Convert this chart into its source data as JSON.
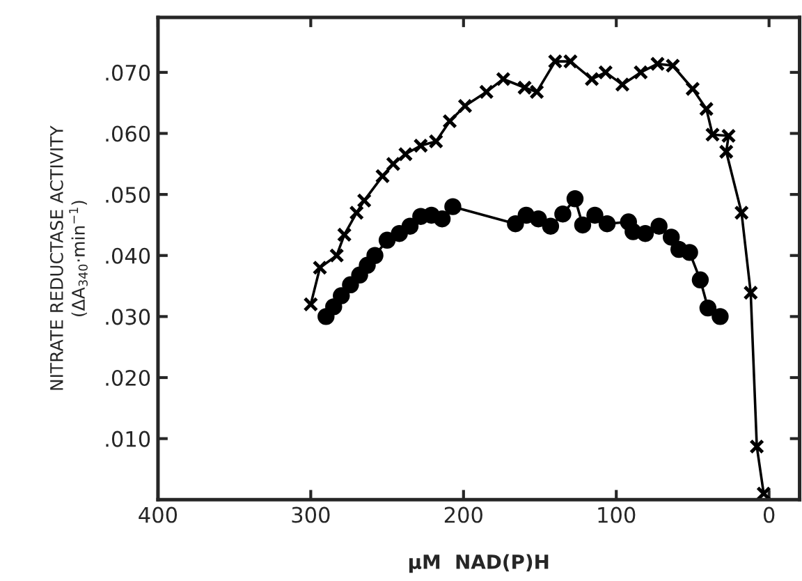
{
  "chart_data": {
    "type": "line",
    "xlabel": "μM  NAD(P)H",
    "ylabel": "NITRATE REDUCTASE ACTIVITY\n(ΔA$_{340}$·min$^{−1}$)",
    "xlim": [
      400,
      -20
    ],
    "ylim": [
      0,
      0.079
    ],
    "xticks": [
      400,
      300,
      200,
      100,
      0
    ],
    "yticks": [
      {
        "value": 0.01,
        "label": ".010"
      },
      {
        "value": 0.02,
        "label": ".020"
      },
      {
        "value": 0.03,
        "label": ".030"
      },
      {
        "value": 0.04,
        "label": ".040"
      },
      {
        "value": 0.05,
        "label": ".050"
      },
      {
        "value": 0.06,
        "label": ".060"
      },
      {
        "value": 0.07,
        "label": ".070"
      }
    ],
    "grid": false,
    "line_style": "solid",
    "series": [
      {
        "color": "#000000",
        "marker": "cross",
        "x": [
          300,
          294,
          283,
          278,
          270,
          265,
          253,
          246,
          238,
          228,
          218,
          209,
          199,
          185,
          174,
          160,
          152,
          140,
          130,
          116,
          107,
          96,
          84,
          73,
          63,
          50,
          41,
          37,
          26.5,
          28,
          18,
          12,
          8,
          3.5
        ],
        "values": [
          0.032,
          0.038,
          0.04,
          0.0434,
          0.047,
          0.049,
          0.053,
          0.055,
          0.0566,
          0.058,
          0.0587,
          0.062,
          0.0645,
          0.0668,
          0.0689,
          0.0675,
          0.0668,
          0.0718,
          0.0718,
          0.0689,
          0.07,
          0.068,
          0.07,
          0.0714,
          0.0711,
          0.0673,
          0.064,
          0.0598,
          0.0596,
          0.057,
          0.047,
          0.0339,
          0.0087,
          0.001
        ]
      },
      {
        "color": "#000000",
        "marker": "circle",
        "x": [
          290,
          285,
          280,
          274,
          268,
          263,
          258,
          250,
          242,
          235,
          228,
          221,
          214,
          207,
          166,
          159,
          151,
          143,
          135,
          127,
          122,
          114,
          106,
          92,
          89,
          81,
          72,
          64,
          59,
          52,
          45,
          40,
          32
        ],
        "values": [
          0.03,
          0.0316,
          0.0334,
          0.0352,
          0.0368,
          0.0384,
          0.04,
          0.0425,
          0.0436,
          0.0448,
          0.0464,
          0.0466,
          0.046,
          0.048,
          0.0452,
          0.0466,
          0.046,
          0.0448,
          0.0468,
          0.0493,
          0.045,
          0.0466,
          0.0452,
          0.0455,
          0.0439,
          0.0436,
          0.0448,
          0.043,
          0.041,
          0.0405,
          0.036,
          0.0314,
          0.03
        ]
      }
    ]
  }
}
